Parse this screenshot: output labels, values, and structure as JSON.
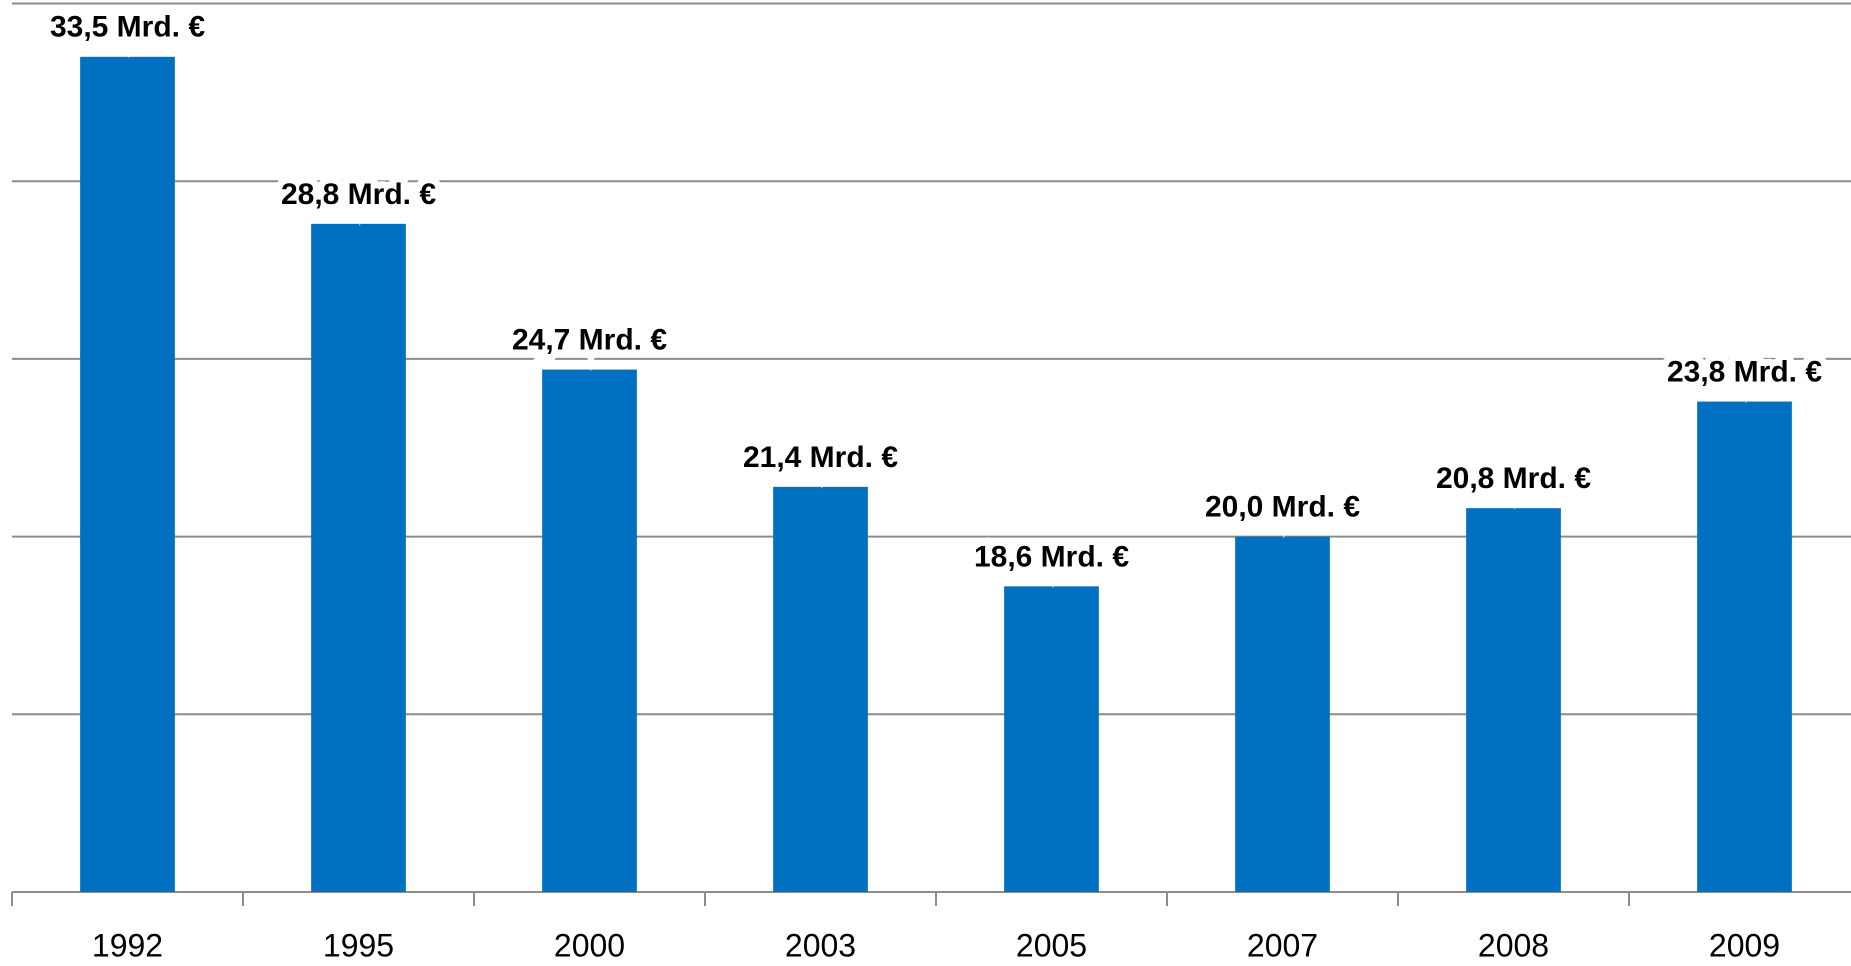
{
  "chart_data": {
    "type": "bar",
    "categories": [
      "1992",
      "1995",
      "2000",
      "2003",
      "2005",
      "2007",
      "2008",
      "2009"
    ],
    "values": [
      33.5,
      28.8,
      24.7,
      21.4,
      18.6,
      20.0,
      20.8,
      23.8
    ],
    "value_labels": [
      "33,5 Mrd. €",
      "28,8 Mrd. €",
      "24,7 Mrd. €",
      "21,4 Mrd. €",
      "18,6 Mrd. €",
      "20,0 Mrd. €",
      "20,8 Mrd. €",
      "23,8 Mrd. €"
    ],
    "color": "#0070c0",
    "ylim": [
      10,
      35
    ],
    "yticks": [
      10,
      15,
      20,
      25,
      30,
      35
    ],
    "grid": true
  }
}
